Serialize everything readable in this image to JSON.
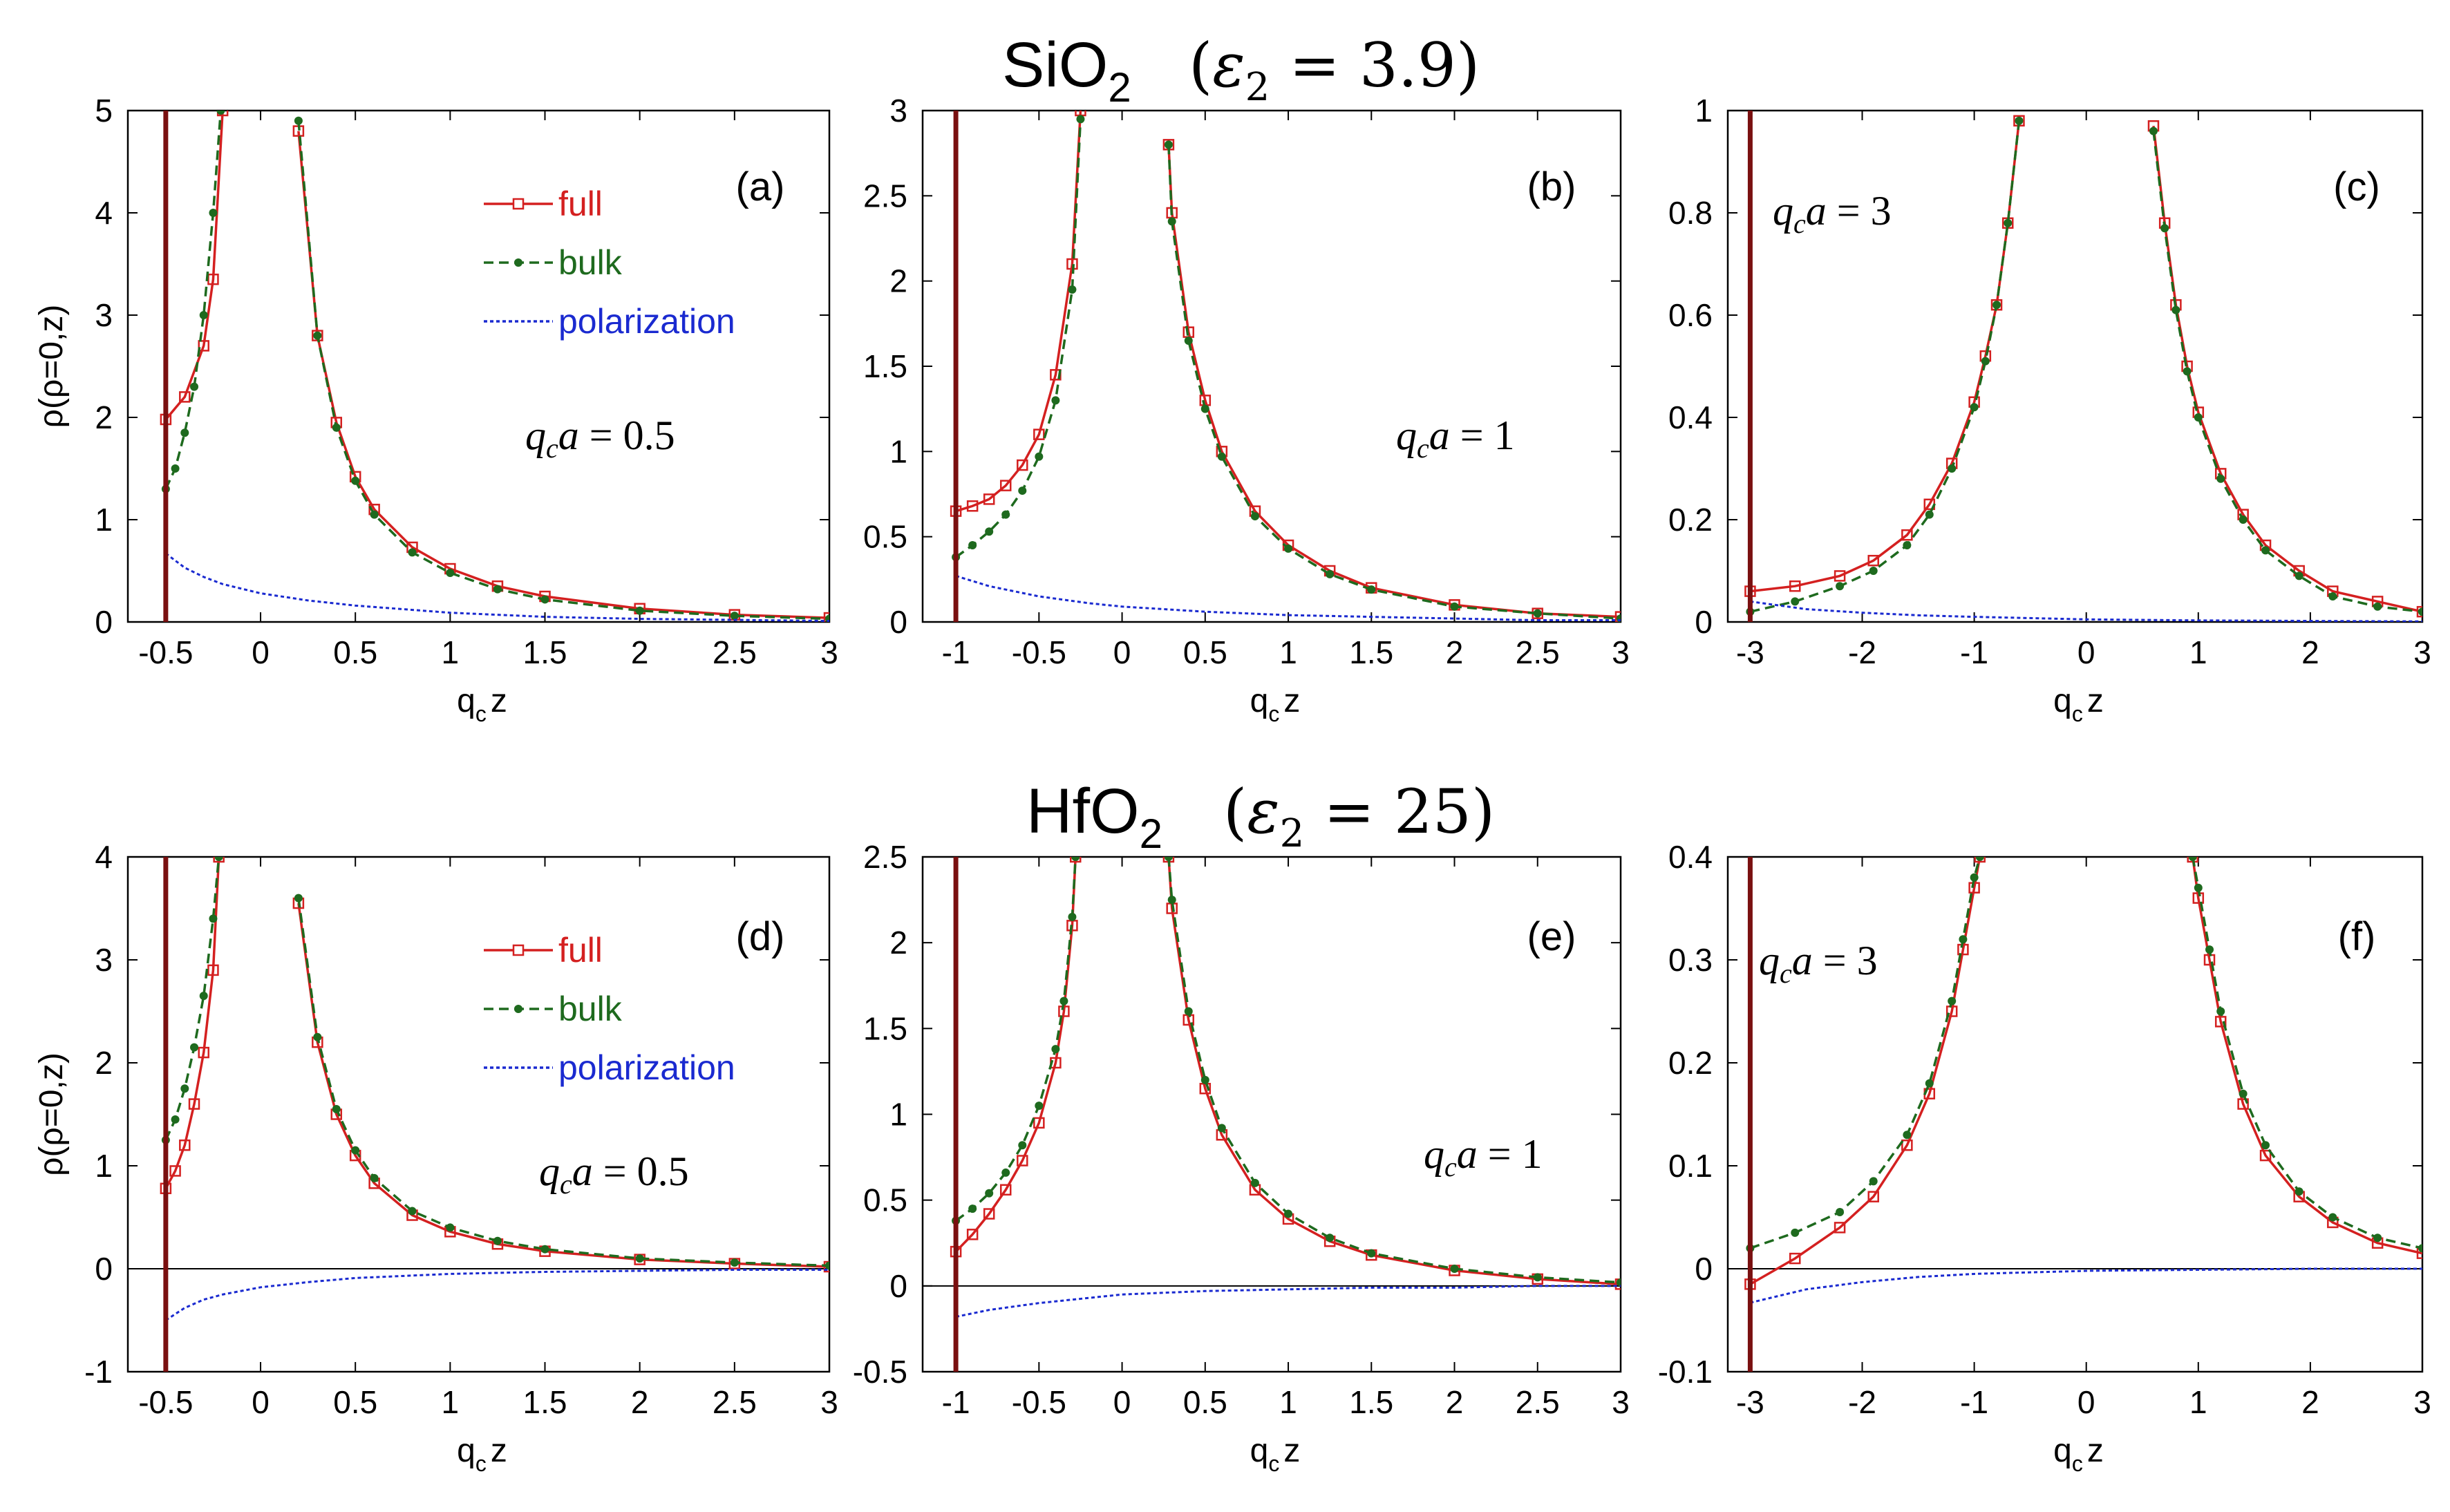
{
  "titles": [
    {
      "formula": "SiO",
      "sub": "2",
      "eps_sym": "ε",
      "eps_sub": "2",
      "eps_val": " = 3.9"
    },
    {
      "formula": "HfO",
      "sub": "2",
      "eps_sym": "ε",
      "eps_sub": "2",
      "eps_val": " = 25"
    }
  ],
  "legend": [
    {
      "name": "full",
      "color": "#d42020",
      "marker": "square",
      "dash": "solid"
    },
    {
      "name": "bulk",
      "color": "#1e6a1e",
      "marker": "dot",
      "dash": "dashed"
    },
    {
      "name": "polarization",
      "color": "#1a2ad0",
      "marker": "none",
      "dash": "dotted"
    }
  ],
  "colors": {
    "full": "#d42020",
    "bulk": "#1e6a1e",
    "polarization": "#1a2ad0",
    "wall": "#7a1010"
  },
  "chart_data": [
    {
      "type": "line",
      "label": "(a)",
      "annotation": {
        "var": "q",
        "sub": "c",
        "var2": "a",
        "val": " = 0.5"
      },
      "xlabel": {
        "main": "q",
        "sub": "c",
        "tail": "z"
      },
      "ylabel": "ρ(ρ=0,z)",
      "xlim": [
        -0.7,
        3
      ],
      "ylim": [
        0,
        5
      ],
      "xticks": [
        "-0.5",
        "0",
        "0.5",
        "1",
        "1.5",
        "2",
        "2.5",
        "3"
      ],
      "xtick_values": [
        -0.5,
        0,
        0.5,
        1,
        1.5,
        2,
        2.5,
        3
      ],
      "yticks": [
        "0",
        "1",
        "2",
        "3",
        "4",
        "5"
      ],
      "ytick_values": [
        0,
        1,
        2,
        3,
        4,
        5
      ],
      "wall_x": -0.5,
      "zero_line": false,
      "legend_shown": true,
      "series": [
        {
          "name": "full",
          "x": [
            -0.5,
            -0.4,
            -0.3,
            -0.25,
            -0.2,
            0.2,
            0.3,
            0.4,
            0.5,
            0.6,
            0.8,
            1.0,
            1.25,
            1.5,
            2.0,
            2.5,
            3.0
          ],
          "y": [
            1.98,
            2.2,
            2.7,
            3.35,
            5.0,
            4.8,
            2.8,
            1.95,
            1.42,
            1.1,
            0.73,
            0.52,
            0.35,
            0.25,
            0.13,
            0.07,
            0.04
          ]
        },
        {
          "name": "bulk",
          "x": [
            -0.5,
            -0.45,
            -0.4,
            -0.35,
            -0.3,
            -0.25,
            -0.21,
            0.2,
            0.3,
            0.4,
            0.5,
            0.6,
            0.8,
            1.0,
            1.25,
            1.5,
            2.0,
            2.5,
            3.0
          ],
          "y": [
            1.3,
            1.5,
            1.85,
            2.3,
            3.0,
            4.0,
            5.0,
            4.9,
            2.8,
            1.9,
            1.38,
            1.05,
            0.68,
            0.48,
            0.32,
            0.22,
            0.11,
            0.06,
            0.03
          ]
        },
        {
          "name": "polarization",
          "x": [
            -0.5,
            -0.4,
            -0.3,
            -0.2,
            0,
            0.25,
            0.5,
            1.0,
            1.5,
            2.0,
            2.5,
            3.0
          ],
          "y": [
            0.67,
            0.53,
            0.44,
            0.37,
            0.28,
            0.21,
            0.16,
            0.09,
            0.05,
            0.03,
            0.02,
            0.01
          ]
        }
      ]
    },
    {
      "type": "line",
      "label": "(b)",
      "annotation": {
        "var": "q",
        "sub": "c",
        "var2": "a",
        "val": " = 1"
      },
      "xlabel": {
        "main": "q",
        "sub": "c",
        "tail": "z"
      },
      "ylabel": "",
      "xlim": [
        -1.2,
        3
      ],
      "ylim": [
        0,
        3
      ],
      "xticks": [
        "-1",
        "-0.5",
        "0",
        "0.5",
        "1",
        "1.5",
        "2",
        "2.5",
        "3"
      ],
      "xtick_values": [
        -1,
        -0.5,
        0,
        0.5,
        1,
        1.5,
        2,
        2.5,
        3
      ],
      "yticks": [
        "0",
        "0.5",
        "1",
        "1.5",
        "2",
        "2.5",
        "3"
      ],
      "ytick_values": [
        0,
        0.5,
        1,
        1.5,
        2,
        2.5,
        3
      ],
      "wall_x": -1,
      "zero_line": false,
      "legend_shown": false,
      "series": [
        {
          "name": "full",
          "x": [
            -1.0,
            -0.9,
            -0.8,
            -0.7,
            -0.6,
            -0.5,
            -0.4,
            -0.3,
            -0.25,
            0.28,
            0.3,
            0.4,
            0.5,
            0.6,
            0.8,
            1.0,
            1.25,
            1.5,
            2.0,
            2.5,
            3.0
          ],
          "y": [
            0.65,
            0.68,
            0.72,
            0.8,
            0.92,
            1.1,
            1.45,
            2.1,
            3.0,
            2.8,
            2.4,
            1.7,
            1.3,
            1.0,
            0.65,
            0.45,
            0.3,
            0.2,
            0.1,
            0.05,
            0.03
          ]
        },
        {
          "name": "bulk",
          "x": [
            -1.0,
            -0.9,
            -0.8,
            -0.7,
            -0.6,
            -0.5,
            -0.4,
            -0.3,
            -0.25,
            0.28,
            0.3,
            0.4,
            0.5,
            0.6,
            0.8,
            1.0,
            1.25,
            1.5,
            2.0,
            2.5,
            3.0
          ],
          "y": [
            0.38,
            0.45,
            0.53,
            0.63,
            0.77,
            0.97,
            1.3,
            1.95,
            2.95,
            2.8,
            2.35,
            1.65,
            1.25,
            0.97,
            0.62,
            0.43,
            0.28,
            0.19,
            0.09,
            0.05,
            0.02
          ]
        },
        {
          "name": "polarization",
          "x": [
            -1.0,
            -0.8,
            -0.5,
            -0.2,
            0,
            0.5,
            1.0,
            1.5,
            2.0,
            2.5,
            3.0
          ],
          "y": [
            0.27,
            0.21,
            0.15,
            0.11,
            0.09,
            0.06,
            0.04,
            0.03,
            0.02,
            0.01,
            0.01
          ]
        }
      ]
    },
    {
      "type": "line",
      "label": "(c)",
      "annotation": {
        "var": "q",
        "sub": "c",
        "var2": "a",
        "val": " = 3"
      },
      "xlabel": {
        "main": "q",
        "sub": "c",
        "tail": "z"
      },
      "ylabel": "",
      "xlim": [
        -3.2,
        3
      ],
      "ylim": [
        0,
        1
      ],
      "xticks": [
        "-3",
        "-2",
        "-1",
        "0",
        "1",
        "2",
        "3"
      ],
      "xtick_values": [
        -3,
        -2,
        -1,
        0,
        1,
        2,
        3
      ],
      "yticks": [
        "0",
        "0.2",
        "0.4",
        "0.6",
        "0.8",
        "1"
      ],
      "ytick_values": [
        0,
        0.2,
        0.4,
        0.6,
        0.8,
        1
      ],
      "wall_x": -3,
      "zero_line": false,
      "legend_shown": false,
      "series": [
        {
          "name": "full",
          "x": [
            -3.0,
            -2.6,
            -2.2,
            -1.9,
            -1.6,
            -1.4,
            -1.2,
            -1.0,
            -0.9,
            -0.8,
            -0.7,
            -0.6,
            0.6,
            0.7,
            0.8,
            0.9,
            1.0,
            1.2,
            1.4,
            1.6,
            1.9,
            2.2,
            2.6,
            3.0
          ],
          "y": [
            0.06,
            0.07,
            0.09,
            0.12,
            0.17,
            0.23,
            0.31,
            0.43,
            0.52,
            0.62,
            0.78,
            0.98,
            0.97,
            0.78,
            0.62,
            0.5,
            0.41,
            0.29,
            0.21,
            0.15,
            0.1,
            0.06,
            0.04,
            0.02
          ]
        },
        {
          "name": "bulk",
          "x": [
            -3.0,
            -2.6,
            -2.2,
            -1.9,
            -1.6,
            -1.4,
            -1.2,
            -1.0,
            -0.9,
            -0.8,
            -0.7,
            -0.6,
            0.6,
            0.7,
            0.8,
            0.9,
            1.0,
            1.2,
            1.4,
            1.6,
            1.9,
            2.2,
            2.6,
            3.0
          ],
          "y": [
            0.02,
            0.04,
            0.07,
            0.1,
            0.15,
            0.21,
            0.3,
            0.42,
            0.51,
            0.62,
            0.78,
            0.98,
            0.96,
            0.77,
            0.61,
            0.49,
            0.4,
            0.28,
            0.2,
            0.14,
            0.09,
            0.05,
            0.03,
            0.02
          ]
        },
        {
          "name": "polarization",
          "x": [
            -3.0,
            -2.5,
            -2.0,
            -1.5,
            -1.0,
            0,
            1.0,
            2.0,
            3.0
          ],
          "y": [
            0.04,
            0.025,
            0.018,
            0.013,
            0.01,
            0.005,
            0.003,
            0.002,
            0.001
          ]
        }
      ]
    },
    {
      "type": "line",
      "label": "(d)",
      "annotation": {
        "var": "q",
        "sub": "c",
        "var2": "a",
        "val": " = 0.5"
      },
      "xlabel": {
        "main": "q",
        "sub": "c",
        "tail": "z"
      },
      "ylabel": "ρ(ρ=0,z)",
      "xlim": [
        -0.7,
        3
      ],
      "ylim": [
        -1,
        4
      ],
      "xticks": [
        "-0.5",
        "0",
        "0.5",
        "1",
        "1.5",
        "2",
        "2.5",
        "3"
      ],
      "xtick_values": [
        -0.5,
        0,
        0.5,
        1,
        1.5,
        2,
        2.5,
        3
      ],
      "yticks": [
        "-1",
        "0",
        "1",
        "2",
        "3",
        "4"
      ],
      "ytick_values": [
        -1,
        0,
        1,
        2,
        3,
        4
      ],
      "wall_x": -0.5,
      "zero_line": true,
      "legend_shown": true,
      "series": [
        {
          "name": "full",
          "x": [
            -0.5,
            -0.45,
            -0.4,
            -0.35,
            -0.3,
            -0.25,
            -0.22,
            0.2,
            0.3,
            0.4,
            0.5,
            0.6,
            0.8,
            1.0,
            1.25,
            1.5,
            2.0,
            2.5,
            3.0
          ],
          "y": [
            0.78,
            0.95,
            1.2,
            1.6,
            2.1,
            2.9,
            4.0,
            3.55,
            2.2,
            1.5,
            1.1,
            0.83,
            0.52,
            0.36,
            0.24,
            0.17,
            0.09,
            0.05,
            0.02
          ]
        },
        {
          "name": "bulk",
          "x": [
            -0.5,
            -0.45,
            -0.4,
            -0.35,
            -0.3,
            -0.25,
            -0.22,
            0.2,
            0.3,
            0.4,
            0.5,
            0.6,
            0.8,
            1.0,
            1.25,
            1.5,
            2.0,
            2.5,
            3.0
          ],
          "y": [
            1.25,
            1.45,
            1.75,
            2.15,
            2.65,
            3.4,
            4.0,
            3.6,
            2.25,
            1.55,
            1.15,
            0.88,
            0.56,
            0.4,
            0.27,
            0.19,
            0.1,
            0.06,
            0.03
          ]
        },
        {
          "name": "polarization",
          "x": [
            -0.5,
            -0.4,
            -0.3,
            -0.2,
            0,
            0.25,
            0.5,
            1.0,
            1.5,
            2.0,
            2.5,
            3.0
          ],
          "y": [
            -0.5,
            -0.38,
            -0.3,
            -0.25,
            -0.18,
            -0.13,
            -0.09,
            -0.05,
            -0.03,
            -0.02,
            -0.01,
            -0.01
          ]
        }
      ]
    },
    {
      "type": "line",
      "label": "(e)",
      "annotation": {
        "var": "q",
        "sub": "c",
        "var2": "a",
        "val": " = 1"
      },
      "xlabel": {
        "main": "q",
        "sub": "c",
        "tail": "z"
      },
      "ylabel": "",
      "xlim": [
        -1.2,
        3
      ],
      "ylim": [
        -0.5,
        2.5
      ],
      "xticks": [
        "-1",
        "-0.5",
        "0",
        "0.5",
        "1",
        "1.5",
        "2",
        "2.5",
        "3"
      ],
      "xtick_values": [
        -1,
        -0.5,
        0,
        0.5,
        1,
        1.5,
        2,
        2.5,
        3
      ],
      "yticks": [
        "-0.5",
        "0",
        "0.5",
        "1",
        "1.5",
        "2",
        "2.5"
      ],
      "ytick_values": [
        -0.5,
        0,
        0.5,
        1,
        1.5,
        2,
        2.5
      ],
      "wall_x": -1,
      "zero_line": true,
      "legend_shown": false,
      "series": [
        {
          "name": "full",
          "x": [
            -1.0,
            -0.9,
            -0.8,
            -0.7,
            -0.6,
            -0.5,
            -0.4,
            -0.35,
            -0.3,
            -0.28,
            0.28,
            0.3,
            0.4,
            0.5,
            0.6,
            0.8,
            1.0,
            1.25,
            1.5,
            2.0,
            2.5,
            3.0
          ],
          "y": [
            0.2,
            0.3,
            0.42,
            0.56,
            0.73,
            0.95,
            1.3,
            1.6,
            2.1,
            2.5,
            2.5,
            2.2,
            1.55,
            1.15,
            0.88,
            0.56,
            0.39,
            0.26,
            0.18,
            0.09,
            0.04,
            0.01
          ]
        },
        {
          "name": "bulk",
          "x": [
            -1.0,
            -0.9,
            -0.8,
            -0.7,
            -0.6,
            -0.5,
            -0.4,
            -0.35,
            -0.3,
            -0.28,
            0.28,
            0.3,
            0.4,
            0.5,
            0.6,
            0.8,
            1.0,
            1.25,
            1.5,
            2.0,
            2.5,
            3.0
          ],
          "y": [
            0.38,
            0.45,
            0.54,
            0.66,
            0.82,
            1.05,
            1.38,
            1.66,
            2.15,
            2.5,
            2.5,
            2.25,
            1.6,
            1.2,
            0.92,
            0.6,
            0.42,
            0.28,
            0.19,
            0.1,
            0.05,
            0.02
          ]
        },
        {
          "name": "polarization",
          "x": [
            -1.0,
            -0.8,
            -0.5,
            -0.2,
            0,
            0.5,
            1.0,
            1.5,
            2.0,
            2.5,
            3.0
          ],
          "y": [
            -0.18,
            -0.14,
            -0.1,
            -0.07,
            -0.05,
            -0.03,
            -0.02,
            -0.01,
            -0.01,
            0,
            0
          ]
        }
      ]
    },
    {
      "type": "line",
      "label": "(f)",
      "annotation": {
        "var": "q",
        "sub": "c",
        "var2": "a",
        "val": " = 3"
      },
      "xlabel": {
        "main": "q",
        "sub": "c",
        "tail": "z"
      },
      "ylabel": "",
      "xlim": [
        -3.2,
        3
      ],
      "ylim": [
        -0.1,
        0.4
      ],
      "xticks": [
        "-3",
        "-2",
        "-1",
        "0",
        "1",
        "2",
        "3"
      ],
      "xtick_values": [
        -3,
        -2,
        -1,
        0,
        1,
        2,
        3
      ],
      "yticks": [
        "-0.1",
        "0",
        "0.1",
        "0.2",
        "0.3",
        "0.4"
      ],
      "ytick_values": [
        -0.1,
        0,
        0.1,
        0.2,
        0.3,
        0.4
      ],
      "wall_x": -3,
      "zero_line": true,
      "legend_shown": false,
      "series": [
        {
          "name": "full",
          "x": [
            -3.0,
            -2.6,
            -2.2,
            -1.9,
            -1.6,
            -1.4,
            -1.2,
            -1.1,
            -1.0,
            -0.95,
            0.95,
            1.0,
            1.1,
            1.2,
            1.4,
            1.6,
            1.9,
            2.2,
            2.6,
            3.0
          ],
          "y": [
            -0.015,
            0.01,
            0.04,
            0.07,
            0.12,
            0.17,
            0.25,
            0.31,
            0.37,
            0.4,
            0.4,
            0.36,
            0.3,
            0.24,
            0.16,
            0.11,
            0.07,
            0.045,
            0.025,
            0.015
          ]
        },
        {
          "name": "bulk",
          "x": [
            -3.0,
            -2.6,
            -2.2,
            -1.9,
            -1.6,
            -1.4,
            -1.2,
            -1.1,
            -1.0,
            -0.95,
            0.95,
            1.0,
            1.1,
            1.2,
            1.4,
            1.6,
            1.9,
            2.2,
            2.6,
            3.0
          ],
          "y": [
            0.02,
            0.035,
            0.055,
            0.085,
            0.13,
            0.18,
            0.26,
            0.32,
            0.38,
            0.4,
            0.4,
            0.37,
            0.31,
            0.25,
            0.17,
            0.12,
            0.075,
            0.05,
            0.03,
            0.02
          ]
        },
        {
          "name": "polarization",
          "x": [
            -3.0,
            -2.5,
            -2.0,
            -1.5,
            -1.0,
            0,
            1.0,
            2.0,
            3.0
          ],
          "y": [
            -0.033,
            -0.02,
            -0.013,
            -0.008,
            -0.005,
            -0.002,
            -0.001,
            0,
            0
          ]
        }
      ]
    }
  ]
}
